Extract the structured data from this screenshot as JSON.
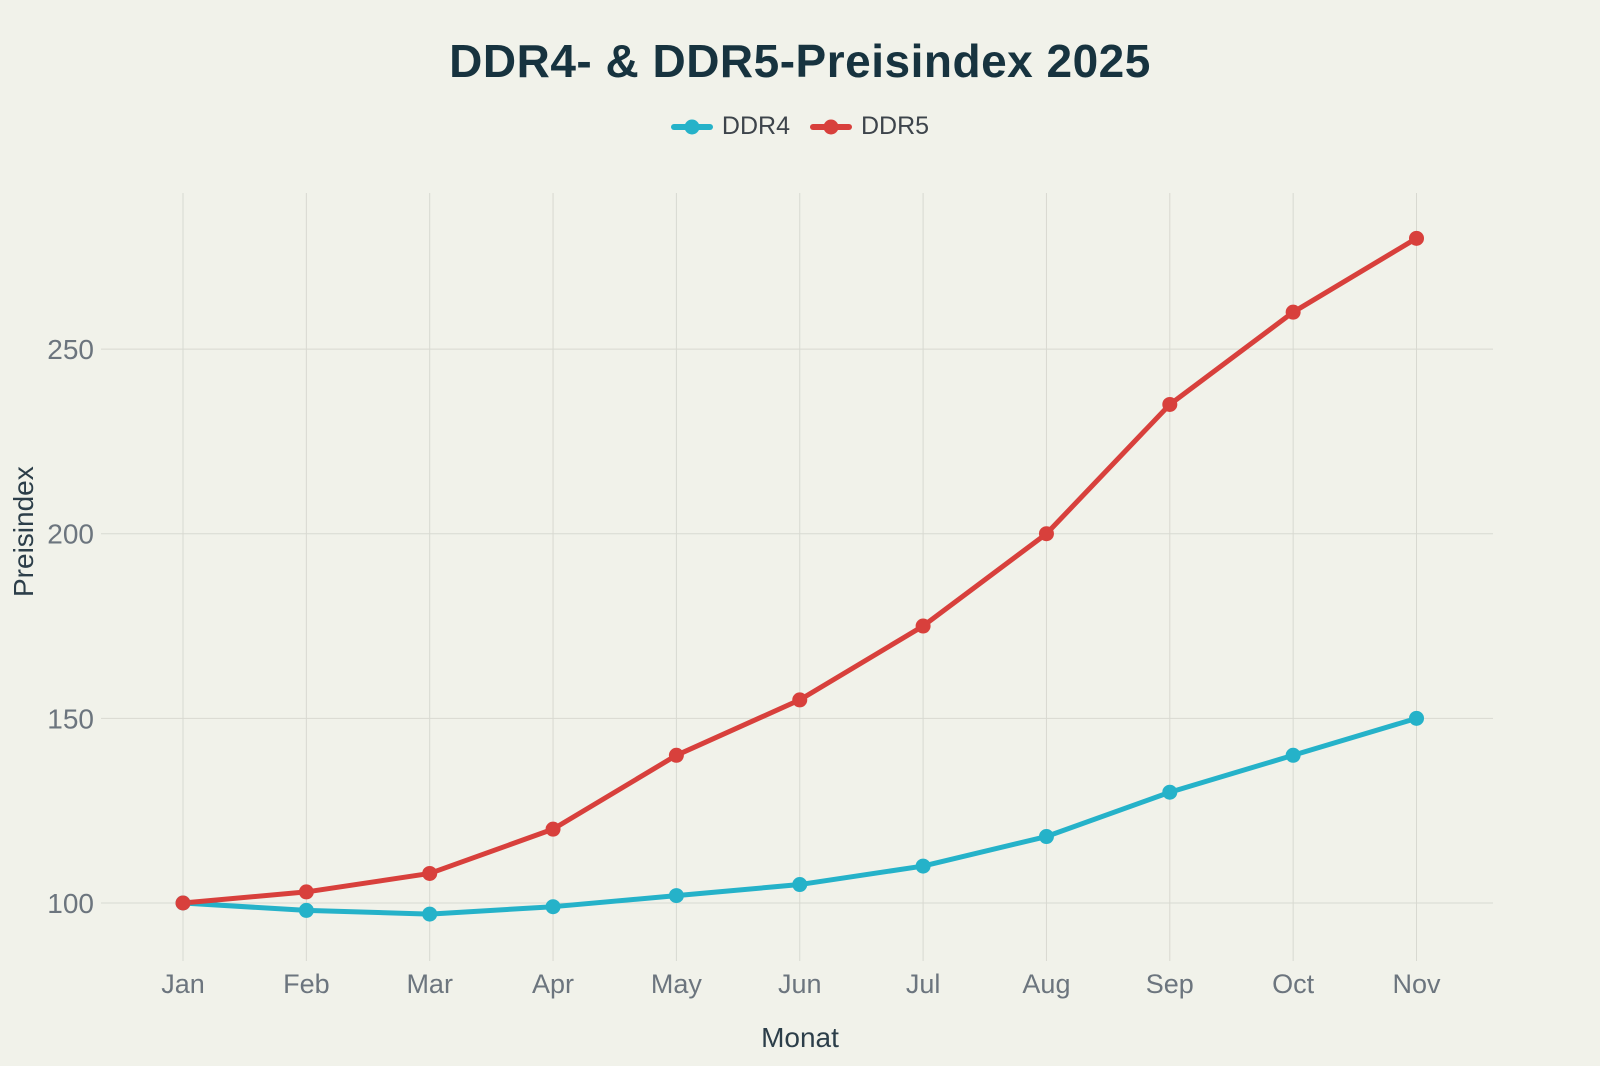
{
  "title": "DDR4- & DDR5-Preisindex 2025",
  "legend": {
    "items": [
      {
        "label": "DDR4",
        "color": "#25b2c9"
      },
      {
        "label": "DDR5",
        "color": "#d8403c"
      }
    ]
  },
  "chart_data": {
    "type": "line",
    "title": "DDR4- & DDR5-Preisindex 2025",
    "xlabel": "Monat",
    "ylabel": "Preisindex",
    "categories": [
      "Jan",
      "Feb",
      "Mar",
      "Apr",
      "May",
      "Jun",
      "Jul",
      "Aug",
      "Sep",
      "Oct",
      "Nov"
    ],
    "series": [
      {
        "name": "DDR4",
        "color": "#25b2c9",
        "values": [
          100,
          98,
          97,
          99,
          102,
          105,
          110,
          118,
          130,
          140,
          150
        ]
      },
      {
        "name": "DDR5",
        "color": "#d8403c",
        "values": [
          100,
          103,
          108,
          120,
          140,
          155,
          175,
          200,
          235,
          260,
          280
        ]
      }
    ],
    "yticks": [
      100,
      150,
      200,
      250
    ],
    "ylim": [
      84,
      292
    ],
    "grid": true,
    "legend_position": "top",
    "marker": "circle"
  },
  "colors": {
    "background": "#f1f2ea",
    "gridline": "#d8d9d1",
    "tick_label": "#6c757e",
    "axis_title": "#2c3e49",
    "chart_title": "#17333f",
    "ddr4": "#25b2c9",
    "ddr5": "#d8403c"
  }
}
